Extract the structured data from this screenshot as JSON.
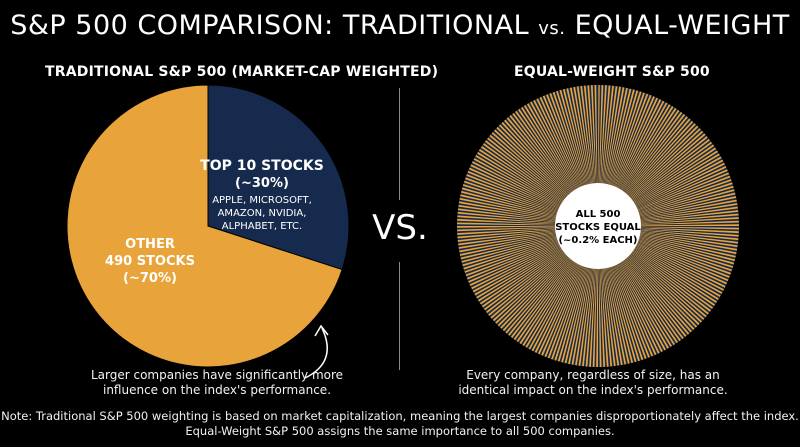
{
  "title_main": "S&P 500 COMPARISON: TRADITIONAL ",
  "title_vs": "vs.",
  "title_end": " EQUAL-WEIGHT",
  "vs_label": "VS.",
  "colors": {
    "orange": "#E8A43A",
    "navy": "#162A4D",
    "background": "#000000"
  },
  "chart_data": [
    {
      "type": "pie",
      "title": "TRADITIONAL S&P 500 (MARKET-CAP WEIGHTED)",
      "slices": [
        {
          "label_line1": "TOP 10 STOCKS",
          "label_line2": "(~30%)",
          "detail": [
            "APPLE, MICROSOFT,",
            "AMAZON, NVIDIA,",
            "ALPHABET, ETC."
          ],
          "value": 30,
          "color": "#162A4D"
        },
        {
          "label_line1": "OTHER",
          "label_line2": "490 STOCKS",
          "label_line3": "(~70%)",
          "value": 70,
          "color": "#E8A43A"
        }
      ],
      "caption": [
        "Larger companies have significantly more",
        "influence on the index's performance."
      ]
    },
    {
      "type": "pie",
      "title": "EQUAL-WEIGHT S&P 500",
      "slice_count": 500,
      "slice_value": 0.2,
      "center_label": [
        "ALL 500",
        "STOCKS EQUAL",
        "(~0.2% EACH)"
      ],
      "caption": [
        "Every company, regardless of size, has an",
        "identical impact on the index's performance."
      ]
    }
  ],
  "note": [
    "Note: Traditional S&P 500 weighting is based on market capitalization, meaning the largest companies disproportionately affect the index.",
    "Equal-Weight S&P 500 assigns the same importance to all 500 companies."
  ]
}
